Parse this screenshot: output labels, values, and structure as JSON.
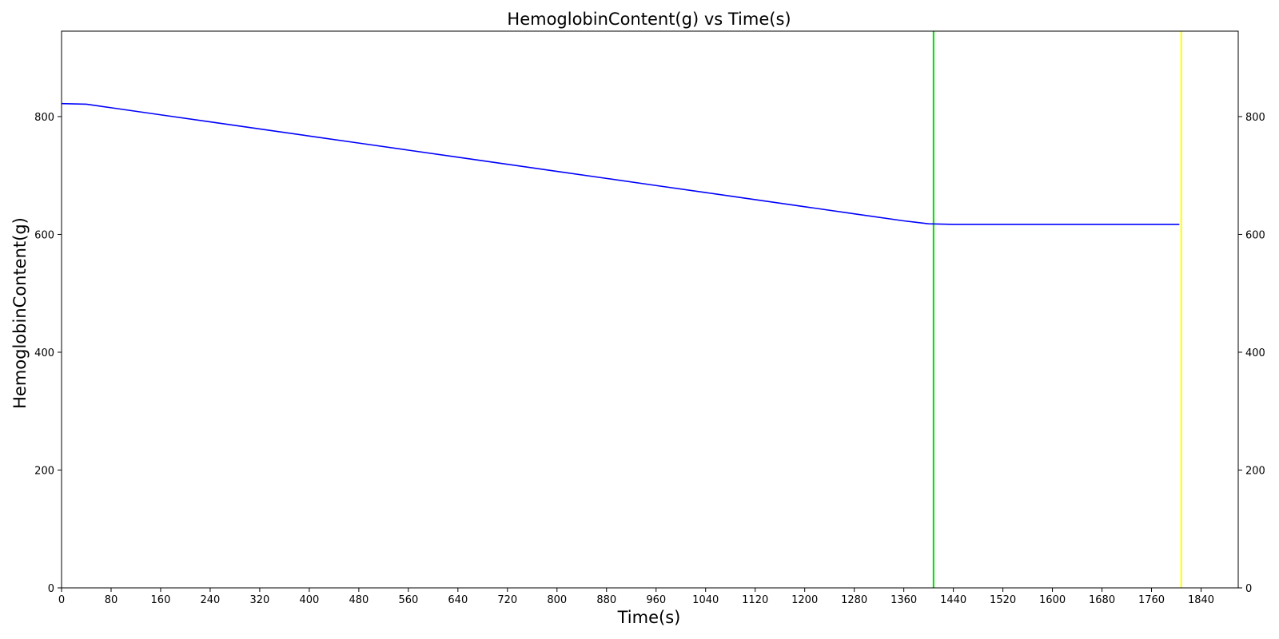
{
  "chart_data": {
    "type": "line",
    "title": "HemoglobinContent(g) vs Time(s)",
    "xlabel": "Time(s)",
    "ylabel": "HemoglobinContent(g)",
    "xlim": [
      0,
      1900
    ],
    "ylim": [
      0,
      945
    ],
    "x_ticks": [
      0,
      80,
      160,
      240,
      320,
      400,
      480,
      560,
      640,
      720,
      800,
      880,
      960,
      1040,
      1120,
      1200,
      1280,
      1360,
      1440,
      1520,
      1600,
      1680,
      1760,
      1840
    ],
    "y_ticks": [
      0,
      200,
      400,
      600,
      800
    ],
    "right_y_ticks": [
      0,
      200,
      400,
      600,
      800
    ],
    "grid": false,
    "legend": "none",
    "series": [
      {
        "color": "#0000ff",
        "x": [
          0,
          40,
          80,
          160,
          240,
          320,
          400,
          480,
          560,
          640,
          720,
          800,
          880,
          960,
          1040,
          1120,
          1200,
          1280,
          1360,
          1400,
          1440,
          1520,
          1600,
          1680,
          1760,
          1805
        ],
        "y": [
          822,
          821,
          815,
          803,
          791,
          779,
          767,
          755,
          743,
          731,
          719,
          707,
          695,
          683,
          671,
          659,
          647,
          635,
          623,
          618,
          617,
          617,
          617,
          617,
          617,
          617
        ]
      }
    ],
    "vertical_lines": [
      {
        "x": 1408,
        "color": "#00dd00"
      },
      {
        "x": 1808,
        "color": "#ffff00"
      }
    ]
  }
}
